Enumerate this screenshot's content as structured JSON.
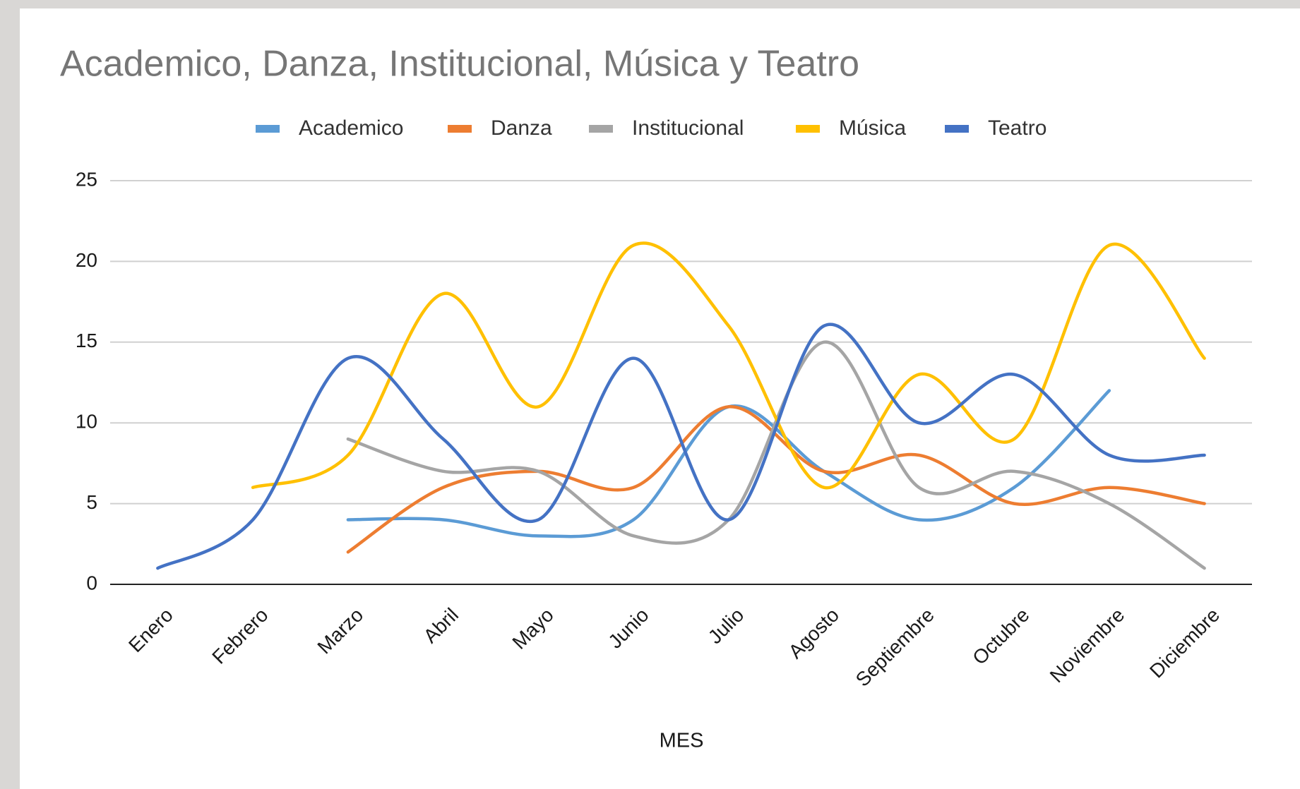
{
  "chart_data": {
    "type": "line",
    "title": "Academico, Danza, Institucional, Música y Teatro",
    "x_label": "MES",
    "categories": [
      "Enero",
      "Febrero",
      "Marzo",
      "Abril",
      "Mayo",
      "Junio",
      "Julio",
      "Agosto",
      "Septiembre",
      "Octubre",
      "Noviembre",
      "Diciembre"
    ],
    "series": [
      {
        "name": "Academico",
        "color": "#5B9BD5",
        "values": [
          null,
          null,
          4,
          4,
          3,
          4,
          11,
          7,
          4,
          6,
          12,
          null
        ]
      },
      {
        "name": "Danza",
        "color": "#ED7D31",
        "values": [
          null,
          null,
          2,
          6,
          7,
          6,
          11,
          7,
          8,
          5,
          6,
          5
        ]
      },
      {
        "name": "Institucional",
        "color": "#A5A5A5",
        "values": [
          null,
          null,
          9,
          7,
          7,
          3,
          4,
          15,
          6,
          7,
          5,
          1
        ]
      },
      {
        "name": "Música",
        "color": "#FFC000",
        "values": [
          null,
          6,
          8,
          18,
          11,
          21,
          16,
          6,
          13,
          9,
          21,
          14
        ]
      },
      {
        "name": "Teatro",
        "color": "#4472C4",
        "values": [
          1,
          4,
          14,
          9,
          4,
          14,
          4,
          16,
          10,
          13,
          8,
          8
        ]
      }
    ],
    "ylim": [
      0,
      25
    ],
    "yticks": [
      0,
      5,
      10,
      15,
      20,
      25
    ],
    "grid": true,
    "smooth": true,
    "legend": "top"
  }
}
